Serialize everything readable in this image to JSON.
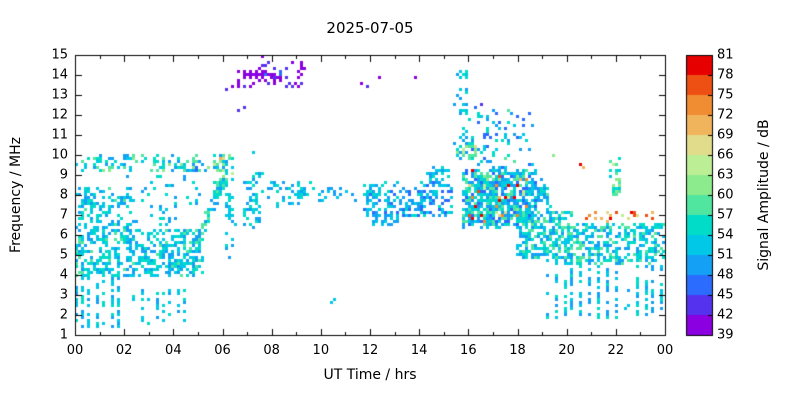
{
  "chart_data": {
    "type": "scatter",
    "title": "2025-07-05",
    "xlabel": "UT Time / hrs",
    "ylabel": "Frequency / MHz",
    "xlim": [
      0,
      24
    ],
    "ylim": [
      1,
      15
    ],
    "grid": false,
    "xticks": {
      "values": [
        0,
        2,
        4,
        6,
        8,
        10,
        12,
        14,
        16,
        18,
        20,
        22,
        24
      ],
      "labels": [
        "00",
        "02",
        "04",
        "06",
        "08",
        "10",
        "12",
        "14",
        "16",
        "18",
        "20",
        "22",
        "00"
      ]
    },
    "yticks": [
      1,
      2,
      3,
      4,
      5,
      6,
      7,
      8,
      9,
      10,
      11,
      12,
      13,
      14,
      15
    ],
    "colorbar": {
      "label": "Signal Amplitude / dB",
      "min": 39,
      "max": 81,
      "ticks": [
        39,
        42,
        45,
        48,
        51,
        54,
        57,
        60,
        63,
        66,
        69,
        72,
        75,
        78,
        81
      ],
      "bin_colors": [
        "#8a00e0",
        "#5533ee",
        "#2b6cff",
        "#14a0f5",
        "#00c8e6",
        "#00dcc8",
        "#50e6a0",
        "#8ceb8c",
        "#bcee96",
        "#e0dc8c",
        "#f0b45c",
        "#f08c32",
        "#ee5014",
        "#e60000"
      ]
    },
    "point_size": 3,
    "regions": [
      {
        "x0": 0.0,
        "x1": 5.2,
        "y0": 3.9,
        "y1": 6.3,
        "n": 470,
        "a0": 48,
        "a1": 58
      },
      {
        "x0": 0.0,
        "x1": 1.9,
        "y0": 1.4,
        "y1": 3.9,
        "n": 95,
        "a0": 48,
        "a1": 55,
        "snap": 0.3
      },
      {
        "x0": 0.0,
        "x1": 2.3,
        "y0": 6.3,
        "y1": 8.4,
        "n": 120,
        "a0": 48,
        "a1": 58
      },
      {
        "x0": 0.3,
        "x1": 5.5,
        "y0": 9.2,
        "y1": 10.05,
        "n": 105,
        "a0": 48,
        "a1": 62
      },
      {
        "x0": 2.1,
        "x1": 5.1,
        "y0": 6.5,
        "y1": 9.0,
        "n": 50,
        "a0": 48,
        "a1": 57
      },
      {
        "x0": 2.4,
        "x1": 4.7,
        "y0": 1.6,
        "y1": 3.3,
        "n": 38,
        "a0": 48,
        "a1": 55,
        "snap": 0.3
      },
      {
        "x0": 4.8,
        "x1": 6.25,
        "y0": 5.0,
        "y1": 9.4,
        "n": 85,
        "a0": 48,
        "a1": 60,
        "diag": true,
        "jy": 0.5
      },
      {
        "x0": 5.7,
        "x1": 6.45,
        "y0": 8.6,
        "y1": 10.0,
        "n": 38,
        "a0": 48,
        "a1": 64
      },
      {
        "x0": 6.3,
        "x1": 9.3,
        "y0": 13.4,
        "y1": 14.6,
        "n": 50,
        "a0": 39,
        "a1": 46
      },
      {
        "x0": 6.9,
        "x1": 8.2,
        "y0": 13.75,
        "y1": 14.2,
        "n": 42,
        "a0": 39,
        "a1": 42
      },
      {
        "x0": 6.1,
        "x1": 6.5,
        "y0": 4.8,
        "y1": 8.2,
        "n": 28,
        "a0": 48,
        "a1": 56
      },
      {
        "x0": 6.9,
        "x1": 7.6,
        "y0": 6.4,
        "y1": 9.2,
        "n": 52,
        "a0": 48,
        "a1": 57
      },
      {
        "x0": 7.8,
        "x1": 9.6,
        "y0": 7.4,
        "y1": 8.7,
        "n": 42,
        "a0": 48,
        "a1": 57
      },
      {
        "x0": 9.6,
        "x1": 11.6,
        "y0": 7.6,
        "y1": 8.4,
        "n": 18,
        "a0": 48,
        "a1": 55
      },
      {
        "x0": 11.8,
        "x1": 15.3,
        "y0": 6.9,
        "y1": 8.6,
        "n": 200,
        "a0": 46,
        "a1": 56
      },
      {
        "x0": 12.0,
        "x1": 13.2,
        "y0": 6.45,
        "y1": 7.0,
        "n": 28,
        "a0": 48,
        "a1": 54
      },
      {
        "x0": 14.2,
        "x1": 15.4,
        "y0": 8.5,
        "y1": 9.4,
        "n": 28,
        "a0": 48,
        "a1": 56
      },
      {
        "x0": 15.4,
        "x1": 16.0,
        "y0": 9.5,
        "y1": 14.2,
        "n": 38,
        "a0": 48,
        "a1": 56
      },
      {
        "x0": 15.5,
        "x1": 16.3,
        "y0": 9.9,
        "y1": 10.6,
        "n": 20,
        "a0": 54,
        "a1": 68
      },
      {
        "x0": 15.8,
        "x1": 18.8,
        "y0": 6.4,
        "y1": 9.2,
        "n": 600,
        "a0": 46,
        "a1": 60
      },
      {
        "x0": 15.9,
        "x1": 18.6,
        "y0": 6.6,
        "y1": 9.0,
        "n": 40,
        "a0": 60,
        "a1": 80
      },
      {
        "x0": 16.0,
        "x1": 18.6,
        "y0": 9.2,
        "y1": 12.3,
        "n": 80,
        "a0": 46,
        "a1": 58
      },
      {
        "x0": 18.0,
        "x1": 20.2,
        "y0": 4.8,
        "y1": 7.2,
        "n": 240,
        "a0": 48,
        "a1": 60
      },
      {
        "x0": 18.4,
        "x1": 19.3,
        "y0": 7.2,
        "y1": 8.8,
        "n": 50,
        "a0": 48,
        "a1": 58
      },
      {
        "x0": 19.2,
        "x1": 22.2,
        "y0": 1.8,
        "y1": 5.4,
        "n": 150,
        "a0": 48,
        "a1": 56,
        "snap": 0.35
      },
      {
        "x0": 20.0,
        "x1": 24.0,
        "y0": 4.6,
        "y1": 6.6,
        "n": 320,
        "a0": 48,
        "a1": 60
      },
      {
        "x0": 20.8,
        "x1": 23.7,
        "y0": 6.7,
        "y1": 7.15,
        "n": 24,
        "a0": 64,
        "a1": 80
      },
      {
        "x0": 21.8,
        "x1": 22.35,
        "y0": 7.8,
        "y1": 9.7,
        "n": 30,
        "a0": 52,
        "a1": 64
      },
      {
        "x0": 22.5,
        "x1": 24.0,
        "y0": 2.0,
        "y1": 4.5,
        "n": 50,
        "a0": 48,
        "a1": 56,
        "snap": 0.35
      }
    ],
    "points": [
      [
        7.6,
        14.95,
        40
      ],
      [
        6.6,
        12.25,
        42
      ],
      [
        6.95,
        12.3,
        44
      ],
      [
        9.3,
        14.4,
        40
      ],
      [
        8.9,
        13.5,
        44
      ],
      [
        11.6,
        13.6,
        41
      ],
      [
        11.9,
        13.5,
        43
      ],
      [
        12.4,
        13.85,
        40
      ],
      [
        13.9,
        13.9,
        41
      ],
      [
        6.2,
        13.25,
        43
      ],
      [
        10.55,
        2.8,
        52
      ],
      [
        10.4,
        2.6,
        52
      ],
      [
        7.3,
        10.2,
        52
      ],
      [
        16.15,
        9.3,
        78
      ],
      [
        20.55,
        9.55,
        79
      ],
      [
        20.65,
        9.4,
        70
      ],
      [
        19.5,
        10.05,
        62
      ],
      [
        16.35,
        10.45,
        66
      ],
      [
        5.95,
        9.9,
        70
      ],
      [
        6.05,
        9.8,
        66
      ],
      [
        22.1,
        9.9,
        54
      ],
      [
        0.12,
        9.55,
        52
      ],
      [
        4.9,
        9.45,
        45
      ],
      [
        5.0,
        9.3,
        46
      ],
      [
        16.5,
        12.5,
        44
      ],
      [
        16.3,
        12.3,
        46
      ]
    ]
  }
}
